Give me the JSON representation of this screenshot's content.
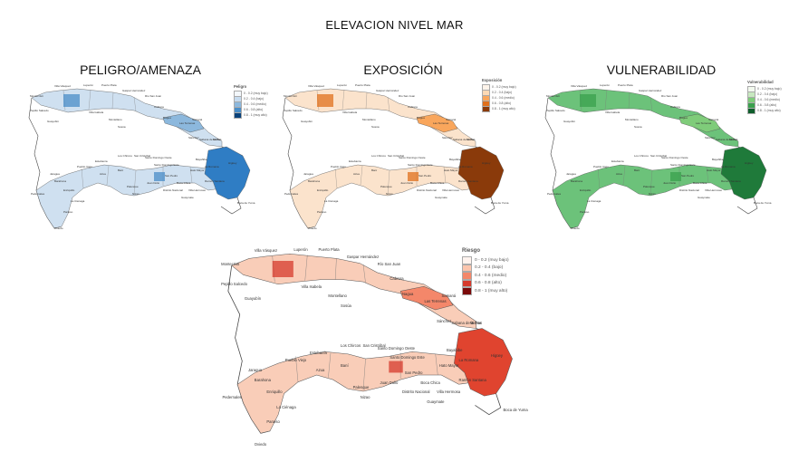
{
  "main_title": "ELEVACION NIVEL MAR",
  "panels": {
    "peligro": {
      "title": "PELIGRO/AMENAZA",
      "legend_title": "Peligro",
      "legend": [
        "0 - 0.2 (muy bajo)",
        "0.2 - 0.4 (bajo)",
        "0.4 - 0.6 (medio)",
        "0.6 - 0.8 (alto)",
        "0.8 - 1 (muy alto)"
      ],
      "colors": [
        "#f3f7fb",
        "#c6dbef",
        "#8cb8dd",
        "#4a8ec8",
        "#08427a"
      ],
      "fill_main": "#cfe0f0",
      "fill_strong": "#2f7dc4"
    },
    "exposicion": {
      "title": "EXPOSICIÓN",
      "legend_title": "Exposición",
      "legend": [
        "0 - 0.2 (muy bajo)",
        "0.2 - 0.4 (bajo)",
        "0.4 - 0.6 (medio)",
        "0.6 - 0.8 (alto)",
        "0.8 - 1 (muy alto)"
      ],
      "colors": [
        "#fff4ea",
        "#fdd9b4",
        "#f9a65c",
        "#e0701c",
        "#8a3a0a"
      ],
      "fill_main": "#fbe3cc",
      "fill_strong": "#8a3a0a"
    },
    "vulnerabilidad": {
      "title": "VULNERABILIDAD",
      "legend_title": "Vulnerabilidad",
      "legend": [
        "0 - 0.2 (muy bajo)",
        "0.2 - 0.4 (bajo)",
        "0.4 - 0.6 (medio)",
        "0.6 - 0.8 (alto)",
        "0.8 - 1 (muy alto)"
      ],
      "colors": [
        "#f2f9ee",
        "#c7e8bf",
        "#7fcc7a",
        "#3aa04d",
        "#0f5e2c"
      ],
      "fill_main": "#6cc27a",
      "fill_strong": "#1f7a3a"
    },
    "riesgo": {
      "legend_title": "Riesgo",
      "legend": [
        "0 - 0.2 (muy bajo)",
        "0.2 - 0.4 (bajo)",
        "0.4 - 0.6 (medio)",
        "0.6 - 0.8 (alto)",
        "0.8 - 1 (muy alto)"
      ],
      "colors": [
        "#fff3ee",
        "#fcc5ad",
        "#f4876a",
        "#d63a2c",
        "#7a0a0a"
      ],
      "fill_main": "#f9cdb8",
      "fill_strong": "#e0442f"
    }
  },
  "place_labels": {
    "villa_vasquez": "Villa Vásquez",
    "montecristi": "Montecristi",
    "pepillo_salcedo": "Pepillo Salcedo",
    "guayubin": "Guayubín",
    "luperon": "Luperón",
    "puerto_plata": "Puerto Plata",
    "gaspar_hernandez": "Gaspar Hernández",
    "rio_san_juan": "Río San Juan",
    "cabrera": "Cabrera",
    "villa_isabela": "Villa Isabela",
    "montellano": "Montellano",
    "sosua": "Sosúa",
    "nagua": "Nagua",
    "las_terrenas": "Las Terrenas",
    "samana": "Samaná",
    "sanchez": "Sánchez",
    "sabana_de_la_mar": "Sabana de la Mar",
    "miches": "Miches",
    "higuey": "Higüey",
    "pedernales": "Pedernales",
    "enriquillo": "Enriquillo",
    "barahona": "Barahona",
    "la_cienaga": "La Ciénaga",
    "paraiso": "Paraíso",
    "oviedo": "Oviedo",
    "jaragua": "Jaragua",
    "pueblo_viejo": "Pueblo Viejo",
    "estebania": "Estebanía",
    "los_chircos": "Los Chircos",
    "san_cristobal": "San Cristóbal",
    "bani": "Baní",
    "azua": "Azua",
    "santo_domingo_oeste": "Santo Domingo Oeste",
    "santo_domingo_este": "Santo Domingo Este",
    "boca_chica": "Boca Chica",
    "bayahibe": "Bayahibe",
    "la_romana": "La Romana",
    "villa_hermosa": "Villa Hermosa",
    "guaymate": "Guaymate",
    "distrito_nacional": "Distrito Nacional",
    "san_pedro": "San Pedro",
    "juan_dolio": "Juan Dolio",
    "ramon_santana": "Ramón Santana",
    "palenque": "Palenque",
    "nizao": "Nizao",
    "hato_mayor": "Hato Mayor",
    "boca_de_yuma": "Boca de Yuma"
  }
}
